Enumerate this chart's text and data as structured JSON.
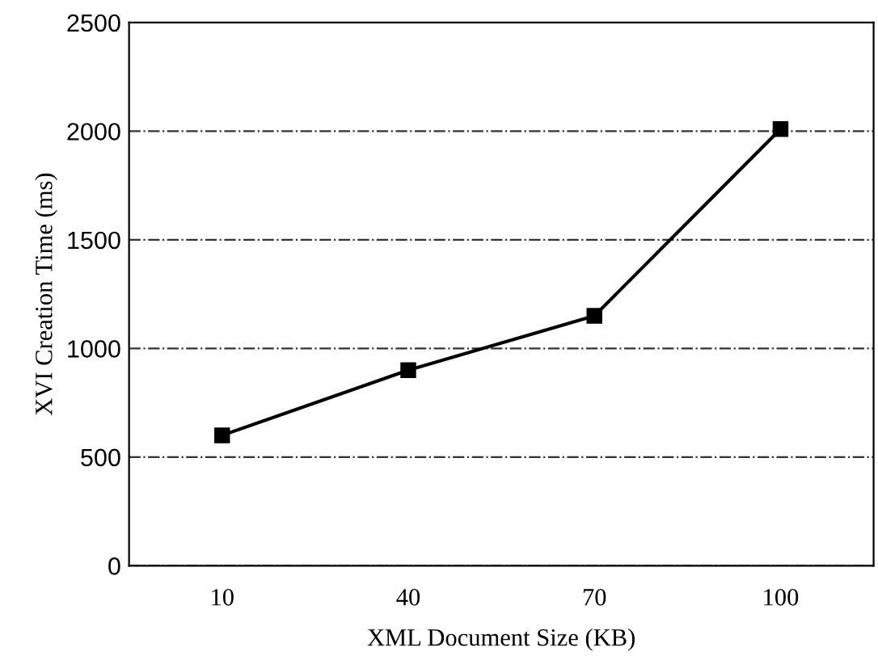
{
  "chart_data": {
    "type": "line",
    "xlabel": "XML Document Size (KB)",
    "ylabel": "XVI Creation Time (ms)",
    "categories": [
      "10",
      "40",
      "70",
      "100"
    ],
    "series": [
      {
        "color": "#000000",
        "values": [
          600,
          900,
          1150,
          2010
        ]
      }
    ],
    "ylim": [
      0,
      2500
    ],
    "yticks": [
      0,
      500,
      1000,
      1500,
      2000,
      2500
    ],
    "grid": "y",
    "marker": "square",
    "line_style": "solid"
  }
}
